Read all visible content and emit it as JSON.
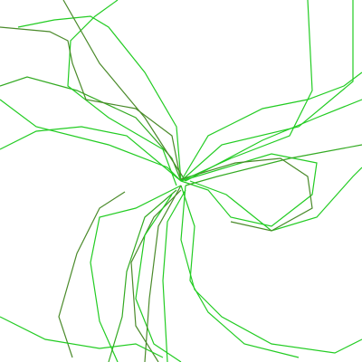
{
  "figure": {
    "background": "#ffffff",
    "curve_colors": {
      "bright": "#22cc22",
      "mid": "#33aa22",
      "dark": "#4a8a2a"
    },
    "curve_count": 12
  }
}
